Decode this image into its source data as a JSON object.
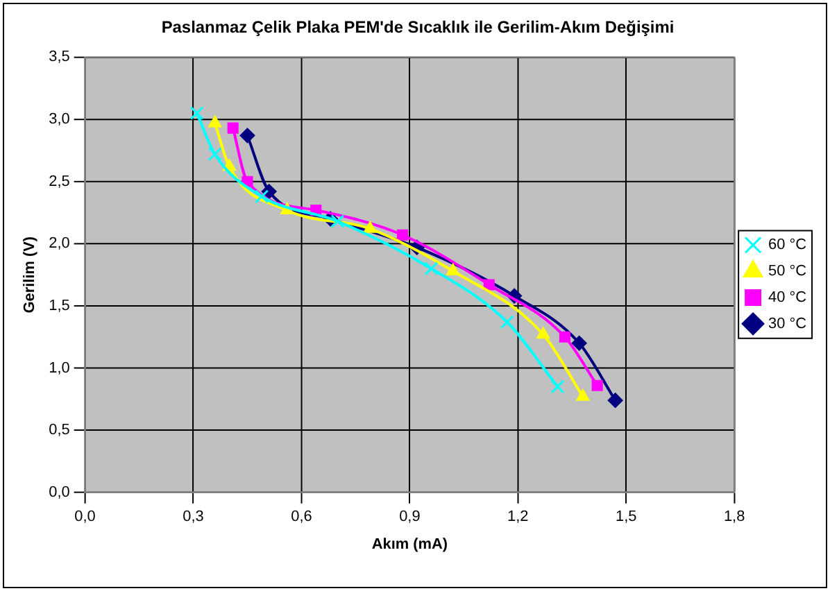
{
  "chart_data": {
    "type": "line",
    "title": "Paslanmaz Çelik Plaka PEM'de Sıcaklık ile Gerilim-Akım Değişimi",
    "xlabel": "Akım (mA)",
    "ylabel": "Gerilim (V)",
    "series": [
      {
        "name": "30 °C",
        "color": "#000080",
        "marker": "diamond",
        "x": [
          0.45,
          0.51,
          0.68,
          0.92,
          1.19,
          1.37,
          1.47
        ],
        "values": [
          2.87,
          2.42,
          2.2,
          1.97,
          1.58,
          1.2,
          0.74
        ]
      },
      {
        "name": "40 °C",
        "color": "#ff00ff",
        "marker": "square",
        "x": [
          0.41,
          0.45,
          0.64,
          0.88,
          1.12,
          1.33,
          1.42
        ],
        "values": [
          2.93,
          2.5,
          2.27,
          2.07,
          1.67,
          1.25,
          0.86
        ]
      },
      {
        "name": "50 °C",
        "color": "#ffff00",
        "marker": "triangle",
        "x": [
          0.36,
          0.4,
          0.56,
          0.79,
          1.02,
          1.27,
          1.38
        ],
        "values": [
          2.97,
          2.62,
          2.27,
          2.12,
          1.78,
          1.27,
          0.77
        ]
      },
      {
        "name": "60 °C",
        "color": "#00ffff",
        "marker": "cross",
        "x": [
          0.31,
          0.36,
          0.49,
          0.7,
          0.96,
          1.17,
          1.31
        ],
        "values": [
          3.05,
          2.72,
          2.38,
          2.18,
          1.8,
          1.37,
          0.85
        ]
      }
    ],
    "xlim": [
      0,
      1.8
    ],
    "xticks": [
      {
        "value": 0,
        "label": "0,0"
      },
      {
        "value": 0.3,
        "label": "0,3"
      },
      {
        "value": 0.6,
        "label": "0,6"
      },
      {
        "value": 0.9,
        "label": "0,9"
      },
      {
        "value": 1.2,
        "label": "1,2"
      },
      {
        "value": 1.5,
        "label": "1,5"
      },
      {
        "value": 1.8,
        "label": "1,8"
      }
    ],
    "ylim": [
      0,
      3.5
    ],
    "yticks": [
      {
        "value": 0,
        "label": "0,0"
      },
      {
        "value": 0.5,
        "label": "0,5"
      },
      {
        "value": 1,
        "label": "1,0"
      },
      {
        "value": 1.5,
        "label": "1,5"
      },
      {
        "value": 2,
        "label": "2,0"
      },
      {
        "value": 2.5,
        "label": "2,5"
      },
      {
        "value": 3,
        "label": "3,0"
      },
      {
        "value": 3.5,
        "label": "3,5"
      }
    ],
    "grid": true,
    "legend": "right",
    "line_style": "solid"
  }
}
